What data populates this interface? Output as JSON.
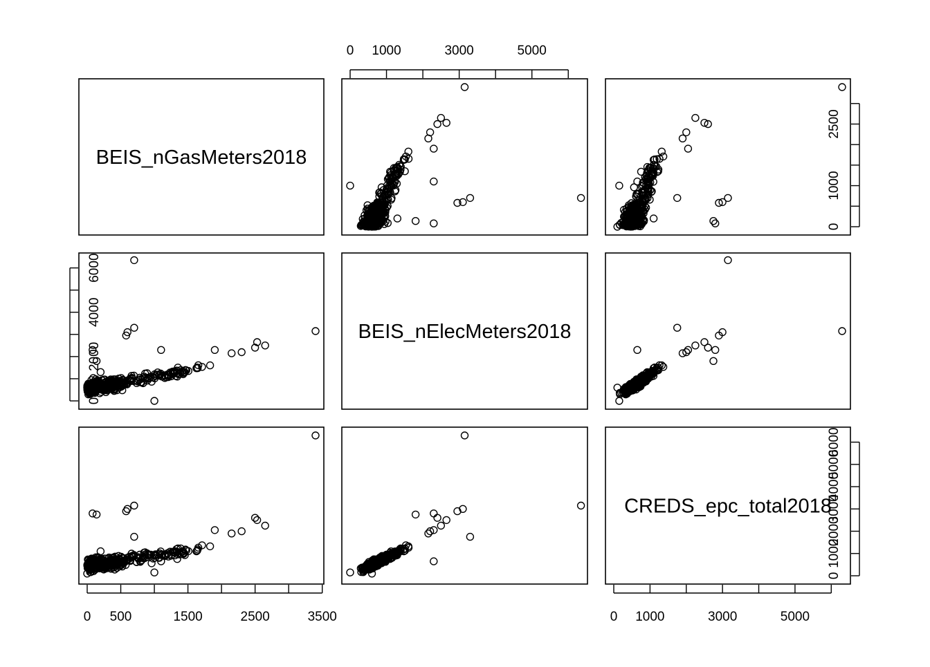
{
  "chart_data": {
    "type": "scatter",
    "subtype": "pairs-matrix",
    "variables": [
      "BEIS_nGasMeters2018",
      "BEIS_nElecMeters2018",
      "CREDS_epc_total2018"
    ],
    "ranges": {
      "BEIS_nGasMeters2018": [
        0,
        3400
      ],
      "BEIS_nElecMeters2018": [
        0,
        6300
      ],
      "CREDS_epc_total2018": [
        0,
        6300
      ]
    },
    "axis_ticks": {
      "BEIS_nGasMeters2018": {
        "values": [
          0,
          500,
          1000,
          1500,
          2000,
          2500,
          3000,
          3500
        ],
        "labels": [
          "0",
          "500",
          "",
          "1500",
          "",
          "2500",
          "",
          "3500"
        ]
      },
      "BEIS_nElecMeters2018": {
        "values": [
          0,
          1000,
          2000,
          3000,
          4000,
          5000,
          6000
        ],
        "labels": [
          "0",
          "1000",
          "",
          "3000",
          "",
          "5000",
          ""
        ]
      },
      "CREDS_epc_total2018": {
        "values": [
          0,
          1000,
          2000,
          3000,
          4000,
          5000,
          6000
        ],
        "labels": [
          "0",
          "1000",
          "",
          "3000",
          "",
          "5000",
          ""
        ]
      },
      "gas_right": {
        "values": [
          0,
          500,
          1000,
          1500,
          2000,
          2500,
          3000
        ],
        "labels": [
          "0",
          "",
          "1000",
          "",
          "",
          "2500",
          ""
        ]
      },
      "elec_left": {
        "values": [
          0,
          1000,
          2000,
          3000,
          4000,
          5000,
          6000
        ],
        "labels": [
          "0",
          "",
          "2000",
          "",
          "4000",
          "",
          "6000"
        ]
      },
      "epc_right": {
        "values": [
          0,
          1000,
          2000,
          3000,
          4000,
          5000,
          6000
        ],
        "labels": [
          "0",
          "1000",
          "2000",
          "3000",
          "4000",
          "5000",
          "6000"
        ]
      }
    },
    "axis_placement": {
      "top": "BEIS_nElecMeters2018",
      "right_row1": "gas_right",
      "left_row2": "elec_left",
      "right_row3": "epc_right",
      "bottom_col1": "BEIS_nGasMeters2018",
      "bottom_col3": "CREDS_epc_total2018"
    },
    "outliers": [
      {
        "gas": 700,
        "elec": 6350,
        "epc": 3150
      },
      {
        "gas": 3400,
        "elec": 3150,
        "epc": 6300
      },
      {
        "gas": 700,
        "elec": 3300,
        "epc": 1750
      },
      {
        "gas": 2530,
        "elec": 2650,
        "epc": 2500
      },
      {
        "gas": 2650,
        "elec": 2500,
        "epc": 2250
      },
      {
        "gas": 2500,
        "elec": 2400,
        "epc": 2600
      },
      {
        "gas": 600,
        "elec": 3100,
        "epc": 3000
      },
      {
        "gas": 580,
        "elec": 2950,
        "epc": 2900
      },
      {
        "gas": 80,
        "elec": 2300,
        "epc": 2800
      },
      {
        "gas": 140,
        "elec": 1800,
        "epc": 2750
      },
      {
        "gas": 1000,
        "elec": 0,
        "epc": 150
      },
      {
        "gas": 1100,
        "elec": 2300,
        "epc": 650
      },
      {
        "gas": 200,
        "elec": 1300,
        "epc": 1100
      },
      {
        "gas": 2300,
        "elec": 2200,
        "epc": 2000
      },
      {
        "gas": 2150,
        "elec": 2150,
        "epc": 1900
      },
      {
        "gas": 1900,
        "elec": 2300,
        "epc": 2050
      },
      {
        "gas": 900,
        "elec": 1000,
        "epc": 950
      },
      {
        "gas": 0,
        "elec": 600,
        "epc": 100
      }
    ],
    "bulk_gas_vs_elec": [
      [
        0,
        550
      ],
      [
        100,
        620
      ],
      [
        200,
        680
      ],
      [
        300,
        720
      ],
      [
        400,
        760
      ],
      [
        500,
        810
      ],
      [
        600,
        860
      ],
      [
        700,
        900
      ],
      [
        800,
        960
      ],
      [
        900,
        1010
      ],
      [
        1000,
        1070
      ],
      [
        1100,
        1130
      ],
      [
        1200,
        1200
      ],
      [
        1300,
        1270
      ],
      [
        1400,
        1330
      ],
      [
        1500,
        1400
      ],
      [
        1600,
        1480
      ],
      [
        1700,
        1560
      ],
      [
        1800,
        1650
      ],
      [
        1900,
        1750
      ],
      [
        2000,
        1850
      ],
      [
        2100,
        1950
      ],
      [
        2200,
        2050
      ]
    ],
    "bulk_elec_vs_epc": [
      [
        200,
        120
      ],
      [
        400,
        260
      ],
      [
        600,
        420
      ],
      [
        800,
        580
      ],
      [
        1000,
        740
      ],
      [
        1200,
        920
      ],
      [
        1400,
        1100
      ],
      [
        1600,
        1300
      ],
      [
        1800,
        1500
      ],
      [
        2000,
        1700
      ],
      [
        2200,
        1900
      ],
      [
        2400,
        2100
      ]
    ],
    "spread": {
      "gas_elec_max": 1500,
      "elec_epc": 700
    },
    "grid": false,
    "legend": "none"
  }
}
